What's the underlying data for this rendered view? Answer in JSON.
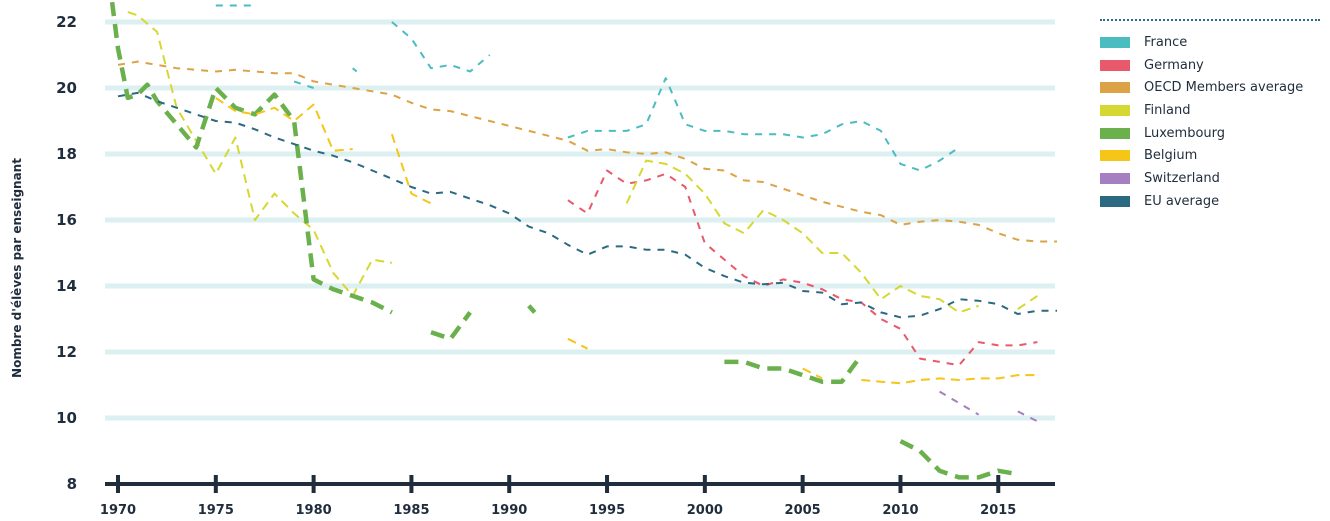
{
  "chart_data": {
    "type": "line",
    "title": "",
    "xlabel": "",
    "ylabel": "Nombre d'élèves par enseignant",
    "xlim": [
      1970,
      2018
    ],
    "ylim": [
      8,
      22.5
    ],
    "xticks": [
      1970,
      1975,
      1980,
      1985,
      1990,
      1995,
      2000,
      2005,
      2010,
      2015
    ],
    "yticks": [
      8,
      10,
      12,
      14,
      16,
      18,
      20,
      22
    ],
    "grid": true,
    "legend_position": "top-right",
    "series": [
      {
        "name": "France",
        "color": "#4bbcc0",
        "width": 2,
        "dash": "7,7",
        "segments": [
          [
            [
              1975,
              22.5
            ],
            [
              1977,
              22.5
            ]
          ],
          [
            [
              1979,
              20.2
            ],
            [
              1980,
              20
            ]
          ],
          [
            [
              1982,
              20.6
            ],
            [
              1982.2,
              20.5
            ]
          ],
          [
            [
              1984,
              22
            ],
            [
              1985,
              21.5
            ],
            [
              1986,
              20.6
            ],
            [
              1987,
              20.7
            ],
            [
              1988,
              20.5
            ],
            [
              1989,
              21
            ]
          ],
          [
            [
              1993,
              18.5
            ],
            [
              1994,
              18.7
            ],
            [
              1995,
              18.7
            ],
            [
              1996,
              18.7
            ],
            [
              1997,
              18.9
            ],
            [
              1998,
              20.3
            ],
            [
              1999,
              18.9
            ],
            [
              2000,
              18.7
            ],
            [
              2001,
              18.7
            ],
            [
              2002,
              18.6
            ],
            [
              2003,
              18.6
            ],
            [
              2004,
              18.6
            ],
            [
              2005,
              18.5
            ],
            [
              2006,
              18.6
            ],
            [
              2007,
              18.9
            ],
            [
              2008,
              19
            ],
            [
              2009,
              18.7
            ],
            [
              2010,
              17.7
            ],
            [
              2011,
              17.5
            ],
            [
              2012,
              17.8
            ],
            [
              2013,
              18.2
            ]
          ]
        ]
      },
      {
        "name": "Germany",
        "color": "#e8596c",
        "width": 2,
        "dash": "7,7",
        "segments": [
          [
            [
              1993,
              16.6
            ],
            [
              1994,
              16.2
            ],
            [
              1995,
              17.5
            ],
            [
              1996,
              17.1
            ],
            [
              1997,
              17.2
            ],
            [
              1998,
              17.4
            ],
            [
              1999,
              17
            ],
            [
              2000,
              15.3
            ],
            [
              2001,
              14.8
            ],
            [
              2002,
              14.3
            ],
            [
              2003,
              14
            ],
            [
              2004,
              14.2
            ],
            [
              2005,
              14.1
            ],
            [
              2006,
              13.9
            ],
            [
              2007,
              13.6
            ],
            [
              2008,
              13.5
            ],
            [
              2009,
              13
            ],
            [
              2010,
              12.7
            ],
            [
              2011,
              11.8
            ],
            [
              2012,
              11.7
            ],
            [
              2013,
              11.6
            ],
            [
              2014,
              12.3
            ],
            [
              2015,
              12.2
            ],
            [
              2016,
              12.2
            ],
            [
              2017,
              12.3
            ]
          ]
        ]
      },
      {
        "name": "OECD Members average",
        "color": "#dca346",
        "width": 2,
        "dash": "7,7",
        "segments": [
          [
            [
              1970,
              20.7
            ],
            [
              1971,
              20.8
            ],
            [
              1972,
              20.7
            ],
            [
              1973,
              20.6
            ],
            [
              1974,
              20.55
            ],
            [
              1975,
              20.5
            ],
            [
              1976,
              20.55
            ],
            [
              1977,
              20.5
            ],
            [
              1978,
              20.45
            ],
            [
              1979,
              20.45
            ],
            [
              1980,
              20.2
            ],
            [
              1981,
              20.1
            ],
            [
              1982,
              20
            ],
            [
              1983,
              19.9
            ],
            [
              1984,
              19.8
            ],
            [
              1985,
              19.55
            ],
            [
              1986,
              19.35
            ],
            [
              1987,
              19.3
            ],
            [
              1988,
              19.15
            ],
            [
              1989,
              19
            ],
            [
              1990,
              18.85
            ],
            [
              1991,
              18.7
            ],
            [
              1992,
              18.55
            ],
            [
              1993,
              18.4
            ],
            [
              1994,
              18.1
            ],
            [
              1995,
              18.15
            ],
            [
              1996,
              18.05
            ],
            [
              1997,
              18
            ],
            [
              1998,
              18.05
            ],
            [
              1999,
              17.85
            ],
            [
              2000,
              17.55
            ],
            [
              2001,
              17.5
            ],
            [
              2002,
              17.2
            ],
            [
              2003,
              17.15
            ],
            [
              2004,
              16.95
            ],
            [
              2005,
              16.75
            ],
            [
              2006,
              16.55
            ],
            [
              2007,
              16.4
            ],
            [
              2008,
              16.25
            ],
            [
              2009,
              16.15
            ],
            [
              2010,
              15.85
            ],
            [
              2011,
              15.95
            ],
            [
              2012,
              16
            ],
            [
              2013,
              15.95
            ],
            [
              2014,
              15.85
            ],
            [
              2015,
              15.6
            ],
            [
              2016,
              15.4
            ],
            [
              2017,
              15.35
            ],
            [
              2018,
              15.35
            ]
          ]
        ]
      },
      {
        "name": "Finland",
        "color": "#d6d832",
        "width": 2,
        "dash": "9,6",
        "segments": [
          [
            [
              1970.5,
              22.3
            ],
            [
              1971,
              22.2
            ],
            [
              1972,
              21.7
            ],
            [
              1973,
              19.4
            ],
            [
              1974,
              18.4
            ],
            [
              1975,
              17.4
            ],
            [
              1976,
              18.5
            ],
            [
              1977,
              16
            ],
            [
              1978,
              16.8
            ],
            [
              1979,
              16.2
            ],
            [
              1980,
              15.7
            ],
            [
              1981,
              14.4
            ],
            [
              1982,
              13.7
            ],
            [
              1983,
              14.8
            ],
            [
              1984,
              14.7
            ]
          ],
          [
            [
              1996,
              16.5
            ],
            [
              1997,
              17.8
            ],
            [
              1998,
              17.7
            ],
            [
              1999,
              17.4
            ],
            [
              2000,
              16.8
            ],
            [
              2001,
              15.9
            ],
            [
              2002,
              15.6
            ],
            [
              2003,
              16.3
            ],
            [
              2004,
              16
            ],
            [
              2005,
              15.6
            ],
            [
              2006,
              15
            ],
            [
              2007,
              15
            ],
            [
              2008,
              14.4
            ],
            [
              2009,
              13.6
            ],
            [
              2010,
              14
            ],
            [
              2011,
              13.7
            ],
            [
              2012,
              13.6
            ],
            [
              2013,
              13.2
            ],
            [
              2014,
              13.4
            ]
          ],
          [
            [
              2016,
              13.3
            ],
            [
              2017,
              13.7
            ]
          ]
        ]
      },
      {
        "name": "Luxembourg",
        "color": "#6ab04c",
        "width": 4.5,
        "dash": "14,8",
        "segments": [
          [
            [
              1969.7,
              22.6
            ],
            [
              1970,
              21.2
            ],
            [
              1970.5,
              19.7
            ],
            [
              1971,
              19.8
            ],
            [
              1971.5,
              20.1
            ],
            [
              1972,
              19.6
            ],
            [
              1973,
              18.9
            ],
            [
              1974,
              18.2
            ],
            [
              1975,
              20
            ],
            [
              1976,
              19.4
            ],
            [
              1977,
              19.2
            ],
            [
              1978,
              19.8
            ],
            [
              1979,
              19
            ],
            [
              1980,
              14.2
            ],
            [
              1981,
              13.9
            ],
            [
              1982,
              13.7
            ],
            [
              1983,
              13.5
            ],
            [
              1984,
              13.2
            ]
          ],
          [
            [
              1986,
              12.6
            ],
            [
              1987,
              12.4
            ],
            [
              1988,
              13.2
            ]
          ],
          [
            [
              1991,
              13.4
            ],
            [
              1991.3,
              13.2
            ]
          ],
          [
            [
              2001,
              11.7
            ],
            [
              2002,
              11.7
            ],
            [
              2003,
              11.5
            ],
            [
              2004,
              11.5
            ],
            [
              2005,
              11.3
            ],
            [
              2006,
              11.1
            ],
            [
              2007,
              11.1
            ],
            [
              2008,
              11.9
            ]
          ],
          [
            [
              2010,
              9.3
            ],
            [
              2011,
              9
            ],
            [
              2012,
              8.4
            ],
            [
              2013,
              8.2
            ],
            [
              2014,
              8.2
            ],
            [
              2015,
              8.4
            ],
            [
              2016,
              8.3
            ]
          ]
        ]
      },
      {
        "name": "Belgium",
        "color": "#f5c518",
        "width": 2,
        "dash": "9,6",
        "segments": [
          [
            [
              1975,
              19.7
            ],
            [
              1976,
              19.3
            ],
            [
              1977,
              19.2
            ],
            [
              1978,
              19.4
            ],
            [
              1979,
              19
            ],
            [
              1980,
              19.5
            ],
            [
              1981,
              18.1
            ],
            [
              1982,
              18.15
            ]
          ],
          [
            [
              1984,
              18.6
            ],
            [
              1985,
              16.8
            ],
            [
              1986,
              16.5
            ]
          ],
          [
            [
              1993,
              12.4
            ],
            [
              1994,
              12.1
            ]
          ],
          [
            [
              2005,
              11.5
            ],
            [
              2006,
              11.2
            ]
          ],
          [
            [
              2008,
              11.15
            ],
            [
              2009,
              11.1
            ],
            [
              2010,
              11.05
            ],
            [
              2011,
              11.15
            ],
            [
              2012,
              11.2
            ],
            [
              2013,
              11.15
            ],
            [
              2014,
              11.2
            ],
            [
              2015,
              11.2
            ],
            [
              2016,
              11.3
            ],
            [
              2017,
              11.3
            ]
          ]
        ]
      },
      {
        "name": "Switzerland",
        "color": "#a57fc2",
        "width": 2,
        "dash": "7,7",
        "segments": [
          [
            [
              2012,
              10.8
            ],
            [
              2014,
              10.1
            ]
          ],
          [
            [
              2016,
              10.2
            ],
            [
              2017,
              9.9
            ]
          ]
        ]
      },
      {
        "name": "EU average",
        "color": "#2c6a82",
        "width": 2,
        "dash": "7,7",
        "segments": [
          [
            [
              1970,
              19.75
            ],
            [
              1971,
              19.85
            ],
            [
              1972,
              19.6
            ],
            [
              1973,
              19.4
            ],
            [
              1974,
              19.2
            ],
            [
              1975,
              19
            ],
            [
              1976,
              18.95
            ],
            [
              1977,
              18.75
            ],
            [
              1978,
              18.5
            ],
            [
              1979,
              18.3
            ],
            [
              1980,
              18.1
            ],
            [
              1981,
              17.95
            ],
            [
              1982,
              17.75
            ],
            [
              1983,
              17.5
            ],
            [
              1984,
              17.25
            ],
            [
              1985,
              17
            ],
            [
              1986,
              16.8
            ],
            [
              1987,
              16.85
            ],
            [
              1988,
              16.65
            ],
            [
              1989,
              16.45
            ],
            [
              1990,
              16.2
            ],
            [
              1991,
              15.8
            ],
            [
              1992,
              15.6
            ],
            [
              1993,
              15.25
            ],
            [
              1994,
              14.95
            ],
            [
              1995,
              15.2
            ],
            [
              1996,
              15.2
            ],
            [
              1997,
              15.1
            ],
            [
              1998,
              15.1
            ],
            [
              1999,
              14.95
            ],
            [
              2000,
              14.55
            ],
            [
              2001,
              14.3
            ],
            [
              2002,
              14.1
            ],
            [
              2003,
              14.05
            ],
            [
              2004,
              14.1
            ],
            [
              2005,
              13.85
            ],
            [
              2006,
              13.8
            ],
            [
              2007,
              13.45
            ],
            [
              2008,
              13.5
            ],
            [
              2009,
              13.2
            ],
            [
              2010,
              13.05
            ],
            [
              2011,
              13.1
            ],
            [
              2012,
              13.3
            ],
            [
              2013,
              13.6
            ],
            [
              2014,
              13.55
            ],
            [
              2015,
              13.45
            ],
            [
              2016,
              13.15
            ],
            [
              2017,
              13.25
            ],
            [
              2018,
              13.25
            ]
          ]
        ]
      }
    ]
  }
}
